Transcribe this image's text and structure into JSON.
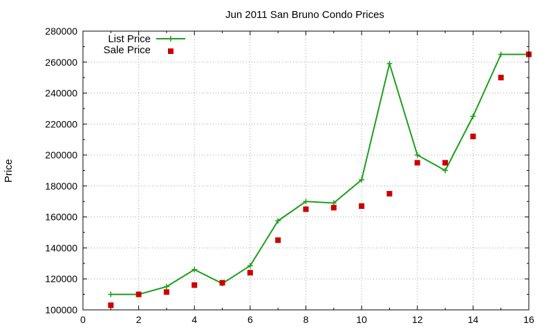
{
  "chart_data": {
    "type": "line",
    "title": "Jun 2011 San Bruno Condo Prices",
    "xlabel": "",
    "ylabel": "Price",
    "xlim": [
      0,
      16
    ],
    "ylim": [
      100000,
      280000
    ],
    "x_ticks": [
      0,
      2,
      4,
      6,
      8,
      10,
      12,
      14,
      16
    ],
    "y_ticks": [
      100000,
      120000,
      140000,
      160000,
      180000,
      200000,
      220000,
      240000,
      260000,
      280000
    ],
    "grid": true,
    "legend_position": "top-left",
    "series": [
      {
        "name": "List Price",
        "style": "line-with-plus-markers",
        "color": "#1a9e1a",
        "x": [
          1,
          2,
          3,
          4,
          5,
          6,
          7,
          8,
          9,
          10,
          11,
          12,
          13,
          14,
          15,
          16
        ],
        "y": [
          110000,
          110000,
          115000,
          126000,
          117000,
          128500,
          157500,
          170000,
          169000,
          184000,
          259000,
          200000,
          190000,
          225000,
          265000,
          265000
        ]
      },
      {
        "name": "Sale Price",
        "style": "square-markers",
        "color": "#cc0000",
        "x": [
          1,
          2,
          3,
          4,
          5,
          6,
          7,
          8,
          9,
          10,
          11,
          12,
          13,
          14,
          15,
          16
        ],
        "y": [
          103000,
          110000,
          111500,
          116000,
          117500,
          124000,
          145000,
          165000,
          166000,
          167000,
          175000,
          195000,
          195000,
          212000,
          250000,
          265000
        ]
      }
    ]
  }
}
